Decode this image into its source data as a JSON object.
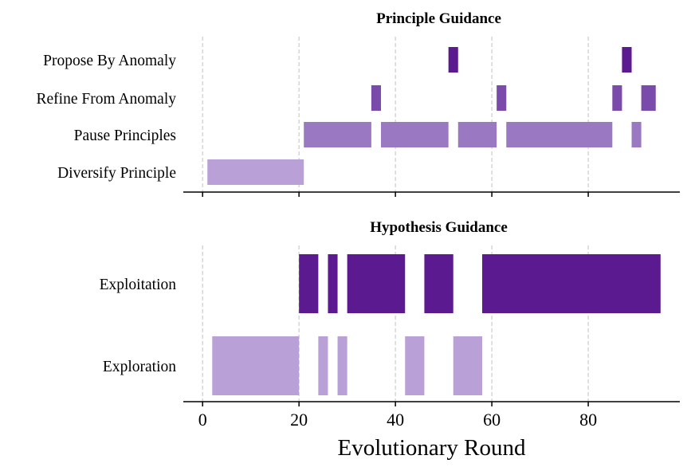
{
  "chart_data": {
    "type": "broken_barh",
    "xlabel": "Evolutionary Round",
    "xlim": [
      -4,
      99
    ],
    "x_ticks": [
      0,
      20,
      40,
      60,
      80
    ],
    "x_tick_labels": [
      "0",
      "20",
      "40",
      "60",
      "80"
    ],
    "grid": "vertical dashed",
    "panels": [
      {
        "title": "Principle Guidance",
        "rows": [
          {
            "label": "Propose By Anomaly",
            "color": "#5b1a8f",
            "segments": [
              [
                51,
                53
              ],
              [
                87,
                89
              ]
            ]
          },
          {
            "label": "Refine From Anomaly",
            "color": "#7b4bab",
            "segments": [
              [
                35,
                37
              ],
              [
                61,
                63
              ],
              [
                85,
                87
              ],
              [
                91,
                94
              ]
            ]
          },
          {
            "label": "Pause Principles",
            "color": "#9b78c2",
            "segments": [
              [
                21,
                35
              ],
              [
                37,
                51
              ],
              [
                53,
                61
              ],
              [
                63,
                85
              ],
              [
                89,
                91
              ]
            ]
          },
          {
            "label": "Diversify Principle",
            "color": "#b9a1d8",
            "segments": [
              [
                1,
                21
              ]
            ]
          }
        ]
      },
      {
        "title": "Hypothesis Guidance",
        "rows": [
          {
            "label": "Exploitation",
            "color": "#5b1a8f",
            "segments": [
              [
                20,
                24
              ],
              [
                26,
                28
              ],
              [
                30,
                42
              ],
              [
                46,
                52
              ],
              [
                58,
                95
              ]
            ]
          },
          {
            "label": "Exploration",
            "color": "#b9a1d8",
            "segments": [
              [
                2,
                20
              ],
              [
                24,
                26
              ],
              [
                28,
                30
              ],
              [
                42,
                46
              ],
              [
                52,
                58
              ]
            ]
          }
        ]
      }
    ]
  }
}
